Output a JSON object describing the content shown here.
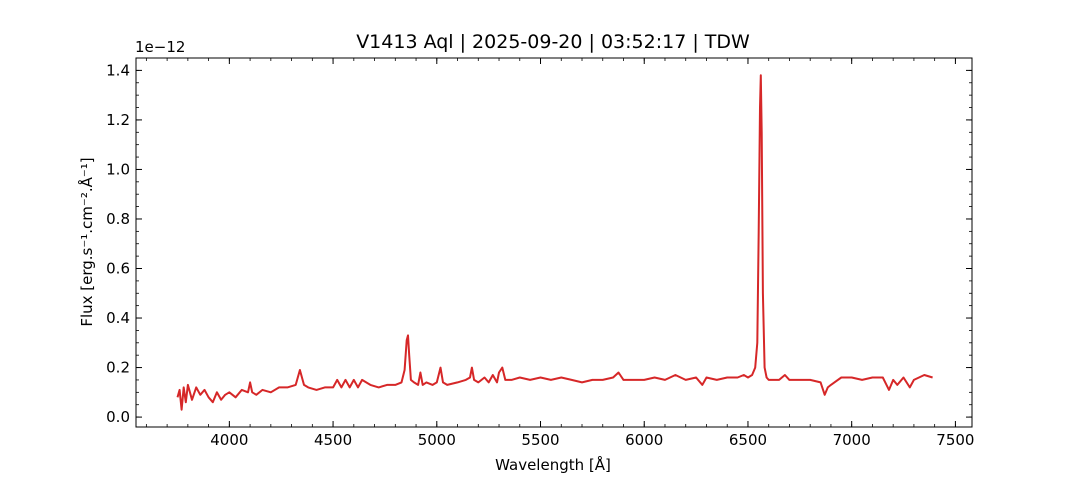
{
  "chart_data": {
    "type": "line",
    "title": "V1413 Aql | 2025-09-20 | 03:52:17 | TDW",
    "xlabel": "Wavelength [Å]",
    "ylabel": "Flux [erg.s⁻¹.cm⁻².Å⁻¹]",
    "y_offset_text": "1e−12",
    "y_scale_factor": 1e-12,
    "xlim": [
      3550,
      7580
    ],
    "ylim": [
      -0.04,
      1.45
    ],
    "xticks": [
      4000,
      4500,
      5000,
      5500,
      6000,
      6500,
      7000,
      7500
    ],
    "xtick_labels": [
      "4000",
      "4500",
      "5000",
      "5500",
      "6000",
      "6500",
      "7000",
      "7500"
    ],
    "yticks": [
      0.0,
      0.2,
      0.4,
      0.6,
      0.8,
      1.0,
      1.2,
      1.4
    ],
    "ytick_labels": [
      "0.0",
      "0.2",
      "0.4",
      "0.6",
      "0.8",
      "1.0",
      "1.2",
      "1.4"
    ],
    "grid": false,
    "series": [
      {
        "color": "#d62728",
        "x": [
          3750,
          3760,
          3770,
          3780,
          3790,
          3800,
          3820,
          3840,
          3860,
          3880,
          3900,
          3920,
          3940,
          3960,
          3980,
          4000,
          4030,
          4060,
          4090,
          4100,
          4110,
          4130,
          4160,
          4200,
          4240,
          4280,
          4320,
          4340,
          4360,
          4380,
          4420,
          4460,
          4500,
          4520,
          4540,
          4560,
          4580,
          4600,
          4620,
          4640,
          4680,
          4720,
          4760,
          4800,
          4830,
          4845,
          4855,
          4861,
          4867,
          4875,
          4890,
          4910,
          4921,
          4932,
          4950,
          4980,
          5000,
          5018,
          5030,
          5050,
          5100,
          5140,
          5160,
          5169,
          5180,
          5200,
          5230,
          5250,
          5270,
          5290,
          5300,
          5316,
          5330,
          5360,
          5400,
          5450,
          5500,
          5550,
          5600,
          5650,
          5700,
          5750,
          5800,
          5850,
          5876,
          5900,
          5950,
          6000,
          6050,
          6100,
          6150,
          6200,
          6250,
          6280,
          6300,
          6350,
          6400,
          6450,
          6480,
          6500,
          6520,
          6535,
          6545,
          6552,
          6558,
          6562,
          6566,
          6572,
          6580,
          6590,
          6600,
          6650,
          6678,
          6700,
          6750,
          6800,
          6850,
          6870,
          6885,
          6900,
          6950,
          7000,
          7050,
          7100,
          7150,
          7180,
          7200,
          7220,
          7250,
          7280,
          7300,
          7350,
          7390
        ],
        "y": [
          0.08,
          0.11,
          0.03,
          0.12,
          0.06,
          0.13,
          0.07,
          0.12,
          0.09,
          0.11,
          0.08,
          0.06,
          0.1,
          0.07,
          0.09,
          0.1,
          0.08,
          0.11,
          0.1,
          0.14,
          0.1,
          0.09,
          0.11,
          0.1,
          0.12,
          0.12,
          0.13,
          0.19,
          0.13,
          0.12,
          0.11,
          0.12,
          0.12,
          0.15,
          0.12,
          0.15,
          0.12,
          0.15,
          0.12,
          0.15,
          0.13,
          0.12,
          0.13,
          0.13,
          0.14,
          0.19,
          0.31,
          0.33,
          0.25,
          0.15,
          0.14,
          0.13,
          0.18,
          0.13,
          0.14,
          0.13,
          0.14,
          0.2,
          0.14,
          0.13,
          0.14,
          0.15,
          0.16,
          0.2,
          0.15,
          0.14,
          0.16,
          0.14,
          0.17,
          0.14,
          0.18,
          0.2,
          0.15,
          0.15,
          0.16,
          0.15,
          0.16,
          0.15,
          0.16,
          0.15,
          0.14,
          0.15,
          0.15,
          0.16,
          0.18,
          0.15,
          0.15,
          0.15,
          0.16,
          0.15,
          0.17,
          0.15,
          0.16,
          0.13,
          0.16,
          0.15,
          0.16,
          0.16,
          0.17,
          0.16,
          0.17,
          0.2,
          0.3,
          0.75,
          1.25,
          1.38,
          1.15,
          0.5,
          0.2,
          0.16,
          0.15,
          0.15,
          0.17,
          0.15,
          0.15,
          0.15,
          0.14,
          0.09,
          0.12,
          0.13,
          0.16,
          0.16,
          0.15,
          0.16,
          0.16,
          0.11,
          0.15,
          0.13,
          0.16,
          0.12,
          0.15,
          0.17,
          0.16
        ]
      }
    ]
  }
}
